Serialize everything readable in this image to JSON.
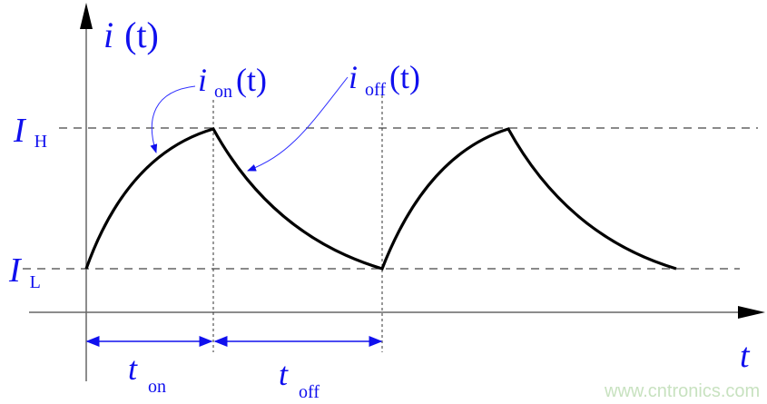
{
  "labels": {
    "y_axis": {
      "var": "i",
      "arg": "(t)"
    },
    "x_axis": "t",
    "i_on": {
      "var": "i",
      "sub": "on",
      "arg": "(t)"
    },
    "i_off": {
      "var": "i",
      "sub": "off",
      "arg": "(t)"
    },
    "i_high": {
      "var": "I",
      "sub": "H"
    },
    "i_low": {
      "var": "I",
      "sub": "L"
    },
    "t_on": {
      "var": "t",
      "sub": "on"
    },
    "t_off": {
      "var": "t",
      "sub": "off"
    }
  },
  "watermark": "www.cntronics.com",
  "colors": {
    "curve": "#000000",
    "labels": "#1010ee",
    "axes": "#555555",
    "watermark": "#c8e2c0"
  }
}
